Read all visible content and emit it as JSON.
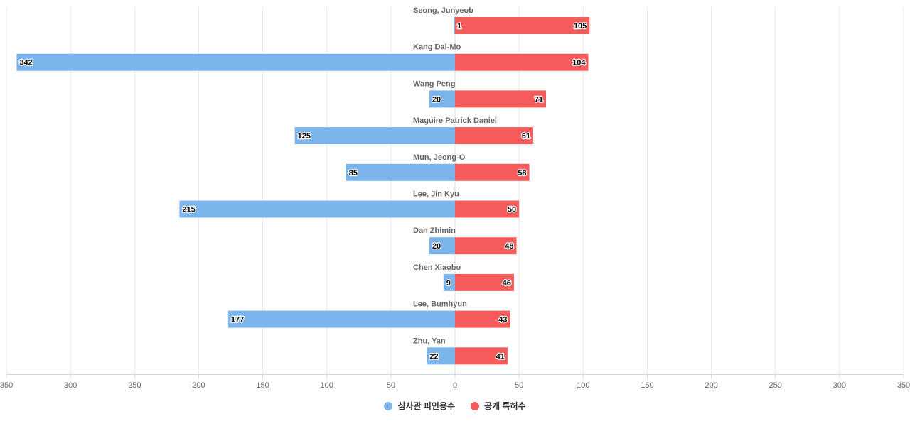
{
  "chart_data": {
    "type": "bar",
    "orientation": "horizontal-diverging",
    "categories": [
      "Seong, Junyeob",
      "Kang Dal-Mo",
      "Wang Peng",
      "Maguire Patrick Daniel",
      "Mun, Jeong-O",
      "Lee, Jin Kyu",
      "Dan Zhimin",
      "Chen Xiaobo",
      "Lee, Bumhyun",
      "Zhu, Yan"
    ],
    "series": [
      {
        "name": "심사관 피인용수",
        "color": "#7cb5ec",
        "side": "left",
        "values": [
          1,
          342,
          20,
          125,
          85,
          215,
          20,
          9,
          177,
          22
        ]
      },
      {
        "name": "공개 특허수",
        "color": "#f45b5b",
        "side": "right",
        "values": [
          105,
          104,
          71,
          61,
          58,
          50,
          48,
          46,
          43,
          41
        ]
      }
    ],
    "x_ticks": [
      "350",
      "300",
      "250",
      "200",
      "150",
      "100",
      "50",
      "0",
      "50",
      "100",
      "150",
      "200",
      "250",
      "300",
      "350"
    ],
    "xlim": [
      -350,
      350
    ],
    "grid": true,
    "legend_position": "bottom-center"
  }
}
